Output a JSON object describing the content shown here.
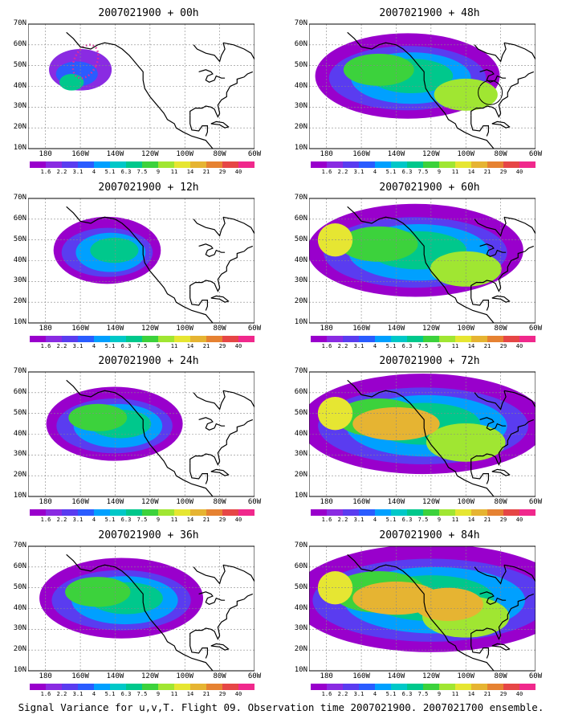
{
  "panels": [
    {
      "title": "2007021900 + 00h",
      "scale": 0.0
    },
    {
      "title": "2007021900 + 48h",
      "scale": 0.55
    },
    {
      "title": "2007021900 + 12h",
      "scale": 0.18
    },
    {
      "title": "2007021900 + 60h",
      "scale": 0.7
    },
    {
      "title": "2007021900 + 24h",
      "scale": 0.32
    },
    {
      "title": "2007021900 + 72h",
      "scale": 0.85
    },
    {
      "title": "2007021900 + 36h",
      "scale": 0.45
    },
    {
      "title": "2007021900 + 84h",
      "scale": 1.0
    }
  ],
  "axes": {
    "y_labels": [
      "70N",
      "60N",
      "50N",
      "40N",
      "30N",
      "20N",
      "10N"
    ],
    "x_labels": [
      "180",
      "160W",
      "140W",
      "120W",
      "100W",
      "80W",
      "60W"
    ]
  },
  "colorbar": {
    "labels": [
      "1.6",
      "2.2",
      "3.1",
      "4",
      "5.1",
      "6.3",
      "7.5",
      "9",
      "11",
      "14",
      "21",
      "29",
      "40"
    ],
    "colors": [
      "#9900cc",
      "#8a2be2",
      "#5a3cf0",
      "#2a5cff",
      "#00a0ff",
      "#00c8c8",
      "#00c88c",
      "#3cd23c",
      "#a0e632",
      "#e6e632",
      "#e6b432",
      "#e68232",
      "#e64646",
      "#f0288c"
    ]
  },
  "footer": "Signal Variance for u,v,T. Flight 09. Observation time 2007021900. 2007021700 ensemble."
}
